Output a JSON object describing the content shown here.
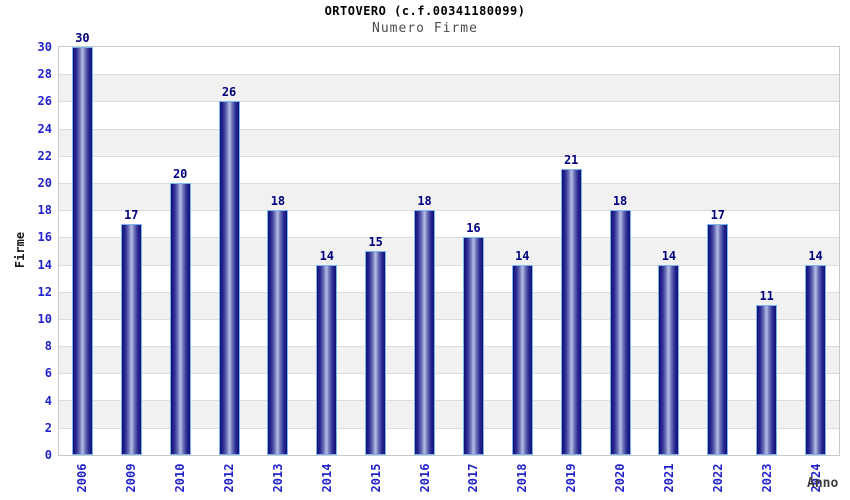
{
  "chart_data": {
    "type": "bar",
    "title": "ORTOVERO (c.f.00341180099)",
    "subtitle": "Numero Firme",
    "xlabel": "Anno",
    "ylabel": "Firme",
    "categories": [
      "2006",
      "2009",
      "2010",
      "2012",
      "2013",
      "2014",
      "2015",
      "2016",
      "2017",
      "2018",
      "2019",
      "2020",
      "2021",
      "2022",
      "2023",
      "2024"
    ],
    "values": [
      30,
      17,
      20,
      26,
      18,
      14,
      15,
      18,
      16,
      14,
      21,
      18,
      14,
      17,
      11,
      14
    ],
    "ylim": [
      0,
      30
    ],
    "ytick_step": 2,
    "grid": "horizontal-bands-every-2-units",
    "legend": "none",
    "colors": {
      "bar_dark": "#0f0f72",
      "bar_light": "#b7bfe6",
      "bar_outline": "#7cb6f0",
      "value_label": "#00007d",
      "tick_label": "#2323cd",
      "axis_title": "#1a1a1a",
      "band_gray": "#f1f1f1",
      "band_white": "#ffffff",
      "gridline": "#dcdcdc",
      "plot_border": "#c9c9c9"
    }
  }
}
